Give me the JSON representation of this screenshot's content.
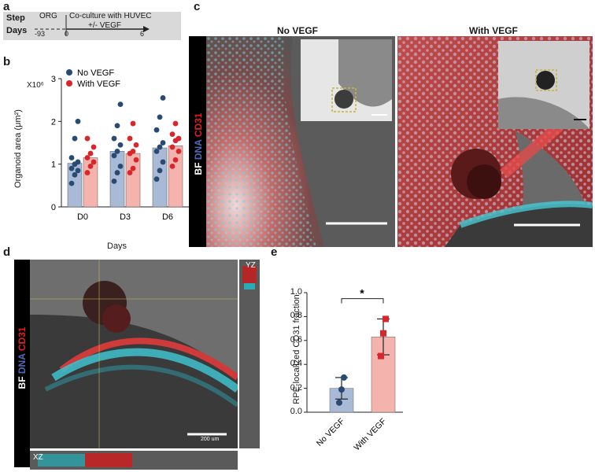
{
  "panel_letters": {
    "a": "a",
    "b": "b",
    "c": "c",
    "d": "d",
    "e": "e"
  },
  "timeline": {
    "row1_label": "Step",
    "row2_label": "Days",
    "org_label": "ORG",
    "coculture_label": "Co-culture with HUVEC",
    "vegf_label": "+/- VEGF",
    "day_start": "-93",
    "day_zero": "0",
    "day_end": "6"
  },
  "panel_b": {
    "ylabel": "Organoid area  (μm²)",
    "xlabel": "Days",
    "multiplier": "X10⁶",
    "legend": [
      {
        "label": "No VEGF",
        "color": "#284a73"
      },
      {
        "label": "With VEGF",
        "color": "#d7272c"
      }
    ],
    "colors": {
      "bar_no": "#a9bad7",
      "bar_with": "#f4b3ad"
    }
  },
  "panel_c": {
    "title_left": "No VEGF",
    "title_right": "With VEGF",
    "stain_bf": "BF",
    "stain_dna": "DNA",
    "stain_cd31": "CD31"
  },
  "panel_d": {
    "label_yz": "YZ",
    "label_xz": "XZ",
    "scale_text": "200 um",
    "stain_bf": "BF",
    "stain_dna": "DNA",
    "stain_cd31": "CD31"
  },
  "panel_e": {
    "ylabel": "RPE-localized CD31 fraction",
    "significance": "*",
    "categories": [
      "No VEGF",
      "With VEGF"
    ]
  },
  "chart_data": [
    {
      "type": "bar",
      "panel": "b",
      "categories": [
        "D0",
        "D3",
        "D6"
      ],
      "series": [
        {
          "name": "No VEGF",
          "values": [
            1.02,
            1.3,
            1.38
          ],
          "points": [
            [
              0.55,
              0.75,
              0.85,
              0.9,
              1.0,
              1.05,
              1.15,
              1.6,
              2.0
            ],
            [
              0.6,
              0.8,
              0.95,
              1.2,
              1.3,
              1.45,
              1.6,
              1.9,
              2.4
            ],
            [
              0.65,
              0.85,
              1.05,
              1.3,
              1.4,
              1.5,
              1.8,
              2.1,
              2.55
            ]
          ]
        },
        {
          "name": "With VEGF",
          "values": [
            1.15,
            1.25,
            1.43
          ],
          "points": [
            [
              0.8,
              0.95,
              1.05,
              1.15,
              1.25,
              1.4,
              1.6
            ],
            [
              0.8,
              0.9,
              1.1,
              1.25,
              1.3,
              1.45,
              1.6,
              1.95
            ],
            [
              0.95,
              1.1,
              1.3,
              1.4,
              1.55,
              1.6,
              1.7,
              1.95
            ]
          ]
        }
      ],
      "ylim": [
        0,
        3
      ],
      "yticks": [
        "0",
        "1",
        "2",
        "3"
      ]
    },
    {
      "type": "bar",
      "panel": "e",
      "categories": [
        "No VEGF",
        "With VEGF"
      ],
      "values": [
        0.2,
        0.63
      ],
      "errors": [
        0.09,
        0.15
      ],
      "points": [
        [
          0.08,
          0.19,
          0.29
        ],
        [
          0.47,
          0.66,
          0.78
        ]
      ],
      "ylim": [
        0,
        1.0
      ],
      "yticks": [
        "0.0",
        "0.2",
        "0.4",
        "0.6",
        "0.8",
        "1.0"
      ]
    }
  ]
}
